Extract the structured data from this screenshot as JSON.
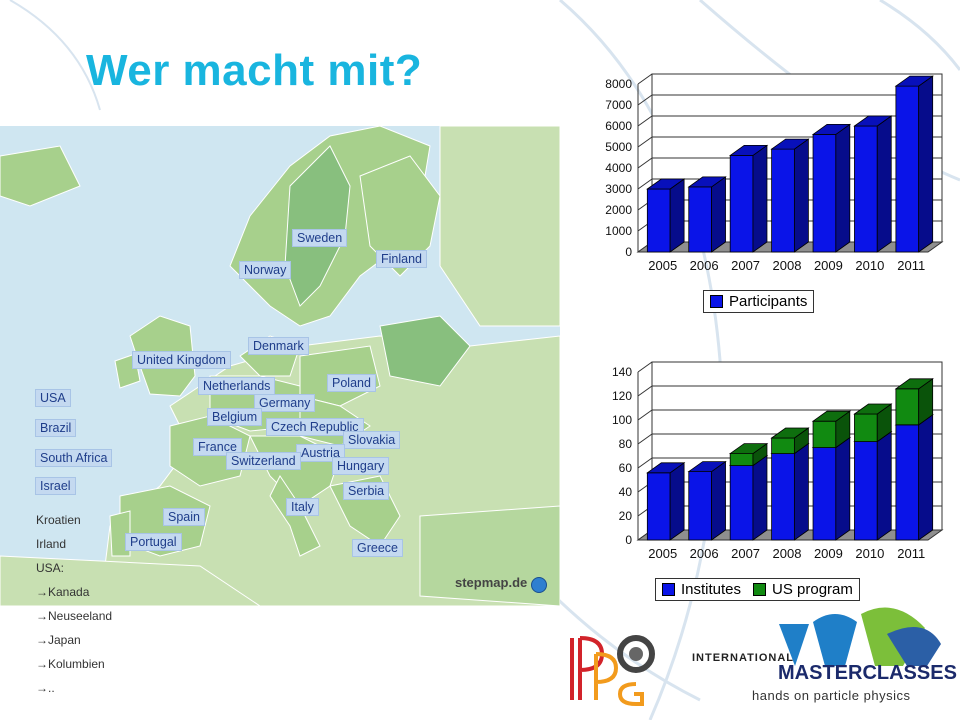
{
  "slide_title": "Wer macht mit?",
  "map": {
    "countries": [
      {
        "id": "sweden",
        "label": "Sweden"
      },
      {
        "id": "finland",
        "label": "Finland"
      },
      {
        "id": "norway",
        "label": "Norway"
      },
      {
        "id": "denmark",
        "label": "Denmark"
      },
      {
        "id": "uk",
        "label": "United Kingdom"
      },
      {
        "id": "netherlands",
        "label": "Netherlands"
      },
      {
        "id": "poland",
        "label": "Poland"
      },
      {
        "id": "germany",
        "label": "Germany"
      },
      {
        "id": "belgium",
        "label": "Belgium"
      },
      {
        "id": "czech",
        "label": "Czech Republic"
      },
      {
        "id": "slovakia",
        "label": "Slovakia"
      },
      {
        "id": "france",
        "label": "France"
      },
      {
        "id": "austria",
        "label": "Austria"
      },
      {
        "id": "switzerland",
        "label": "Switzerland"
      },
      {
        "id": "hungary",
        "label": "Hungary"
      },
      {
        "id": "serbia",
        "label": "Serbia"
      },
      {
        "id": "italy",
        "label": "Italy"
      },
      {
        "id": "spain",
        "label": "Spain"
      },
      {
        "id": "portugal",
        "label": "Portugal"
      },
      {
        "id": "greece",
        "label": "Greece"
      },
      {
        "id": "usa",
        "label": "USA"
      },
      {
        "id": "brazil",
        "label": "Brazil"
      },
      {
        "id": "southafrica",
        "label": "South Africa"
      },
      {
        "id": "israel",
        "label": "Israel"
      }
    ],
    "watermark": "stepmap.de"
  },
  "sidebar_list": [
    "Kroatien",
    "Irland",
    "USA:",
    "→Kanada",
    "→Neuseeland",
    "→Japan",
    "→Kolumbien",
    "→.."
  ],
  "chart_data": [
    {
      "type": "bar",
      "categories": [
        "2005",
        "2006",
        "2007",
        "2008",
        "2009",
        "2010",
        "2011"
      ],
      "series": [
        {
          "name": "Participants",
          "values": [
            3000,
            3100,
            4600,
            4900,
            5600,
            6000,
            7900
          ],
          "color": "#0a14e8"
        }
      ],
      "yticks": [
        "0",
        "1000",
        "2000",
        "3000",
        "4000",
        "5000",
        "6000",
        "7000",
        "8000"
      ],
      "ylim": [
        0,
        8000
      ],
      "legend": "bottom"
    },
    {
      "type": "bar",
      "stacked": true,
      "categories": [
        "2005",
        "2006",
        "2007",
        "2008",
        "2009",
        "2010",
        "2011"
      ],
      "series": [
        {
          "name": "Institutes",
          "values": [
            56,
            57,
            62,
            72,
            77,
            82,
            96
          ],
          "color": "#0a14e8"
        },
        {
          "name": "US program",
          "values": [
            0,
            0,
            10,
            13,
            22,
            23,
            30
          ],
          "color": "#118a11"
        }
      ],
      "yticks": [
        "0",
        "20",
        "40",
        "60",
        "80",
        "100",
        "120",
        "140"
      ],
      "ylim": [
        0,
        140
      ],
      "legend": "bottom"
    }
  ],
  "logos": {
    "ippog_letters": "IPPOG",
    "im_line1": "INTERNATIONAL",
    "im_line2": "MASTERCLASSES",
    "im_tagline": "hands on particle physics"
  }
}
